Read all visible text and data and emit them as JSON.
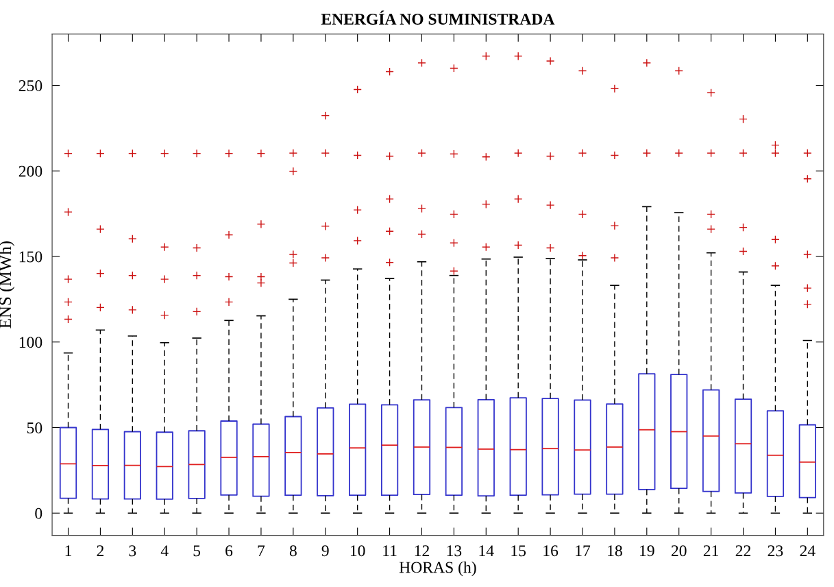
{
  "chart_data": {
    "type": "box",
    "title": "ENERGÍA NO SUMINISTRADA",
    "xlabel": "HORAS (h)",
    "ylabel": "ENS (MWh)",
    "categories": [
      "1",
      "2",
      "3",
      "4",
      "5",
      "6",
      "7",
      "8",
      "9",
      "10",
      "11",
      "12",
      "13",
      "14",
      "15",
      "16",
      "17",
      "18",
      "19",
      "20",
      "21",
      "22",
      "23",
      "24"
    ],
    "ylim": [
      -13,
      280
    ],
    "yticks": [
      0,
      50,
      100,
      150,
      200,
      250
    ],
    "grid": false,
    "marker": "cross",
    "series": [
      {
        "color": "#3333cc",
        "boxes": [
          {
            "low": 0,
            "q1": 8.7,
            "median": 28.8,
            "q3": 50.0,
            "high": 93.6,
            "outliers": [
              113.3,
              123.4,
              136.7,
              176,
              210.2
            ]
          },
          {
            "low": 0,
            "q1": 8.3,
            "median": 27.8,
            "q3": 48.9,
            "high": 107,
            "outliers": [
              120.2,
              140.1,
              166,
              210.2
            ]
          },
          {
            "low": 0,
            "q1": 8.3,
            "median": 27.9,
            "q3": 47.6,
            "high": 103.5,
            "outliers": [
              118.8,
              138.9,
              160.3,
              210.2
            ]
          },
          {
            "low": 0,
            "q1": 8.2,
            "median": 27.2,
            "q3": 47.3,
            "high": 99.6,
            "outliers": [
              115.7,
              136.7,
              155.5,
              210.2
            ]
          },
          {
            "low": 0,
            "q1": 8.6,
            "median": 28.4,
            "q3": 48.1,
            "high": 102.3,
            "outliers": [
              117.8,
              138.9,
              155.0,
              210.2
            ]
          },
          {
            "low": 0,
            "q1": 10.6,
            "median": 32.6,
            "q3": 53.8,
            "high": 112.6,
            "outliers": [
              123.4,
              138.2,
              162.6,
              210.2
            ]
          },
          {
            "low": 0,
            "q1": 9.9,
            "median": 33.0,
            "q3": 52.0,
            "high": 115.3,
            "outliers": [
              134.5,
              138.2,
              168.9,
              210.2
            ]
          },
          {
            "low": 0,
            "q1": 10.5,
            "median": 35.4,
            "q3": 56.4,
            "high": 125,
            "outliers": [
              146.2,
              151.2,
              199.8,
              210.4
            ]
          },
          {
            "low": 0,
            "q1": 10.2,
            "median": 34.6,
            "q3": 61.5,
            "high": 136.2,
            "outliers": [
              149.2,
              167.7,
              210.4,
              232.3
            ]
          },
          {
            "low": 0,
            "q1": 10.5,
            "median": 38.1,
            "q3": 63.7,
            "high": 142.7,
            "outliers": [
              159.2,
              177.2,
              209.1,
              247.6
            ]
          },
          {
            "low": 0,
            "q1": 10.5,
            "median": 39.7,
            "q3": 63.3,
            "high": 137.1,
            "outliers": [
              146.5,
              164.7,
              183.6,
              208.6,
              258
            ]
          },
          {
            "low": 0,
            "q1": 10.9,
            "median": 38.6,
            "q3": 66.2,
            "high": 146.9,
            "outliers": [
              163,
              178,
              210.4,
              263.1
            ]
          },
          {
            "low": 0,
            "q1": 10.5,
            "median": 38.4,
            "q3": 61.7,
            "high": 138.9,
            "outliers": [
              141.5,
              157.9,
              174.7,
              209.9,
              260
            ]
          },
          {
            "low": 0,
            "q1": 10.1,
            "median": 37.4,
            "q3": 66.3,
            "high": 148.5,
            "outliers": [
              155.5,
              180.5,
              208.2,
              267.1
            ]
          },
          {
            "low": 0,
            "q1": 10.5,
            "median": 37.1,
            "q3": 67.4,
            "high": 149.6,
            "outliers": [
              156.6,
              183.6,
              210.4,
              267.1
            ]
          },
          {
            "low": 0,
            "q1": 10.7,
            "median": 37.7,
            "q3": 67.0,
            "high": 148.8,
            "outliers": [
              155.0,
              180,
              208.6,
              264.2
            ]
          },
          {
            "low": 0,
            "q1": 11.1,
            "median": 36.9,
            "q3": 66.1,
            "high": 148,
            "outliers": [
              150.5,
              174.7,
              210.4,
              258.5
            ]
          },
          {
            "low": 0,
            "q1": 11.1,
            "median": 38.6,
            "q3": 63.8,
            "high": 133.1,
            "outliers": [
              149.2,
              168,
              209.1,
              248.1
            ]
          },
          {
            "low": 0,
            "q1": 13.8,
            "median": 48.7,
            "q3": 81.4,
            "high": 179.1,
            "outliers": [
              210.4,
              263.1
            ]
          },
          {
            "low": 0,
            "q1": 14.5,
            "median": 47.6,
            "q3": 81.0,
            "high": 175.6,
            "outliers": [
              210.4,
              258.5
            ]
          },
          {
            "low": 0,
            "q1": 12.7,
            "median": 45.0,
            "q3": 72.0,
            "high": 152.1,
            "outliers": [
              166,
              174.7,
              210.4,
              245.7
            ]
          },
          {
            "low": 0,
            "q1": 11.8,
            "median": 40.5,
            "q3": 66.6,
            "high": 140.9,
            "outliers": [
              153,
              167,
              210.4,
              230.3
            ]
          },
          {
            "low": 0,
            "q1": 9.8,
            "median": 33.8,
            "q3": 59.8,
            "high": 133.1,
            "outliers": [
              144.5,
              159.9,
              210.4,
              215.1
            ]
          },
          {
            "low": 0,
            "q1": 9.1,
            "median": 29.8,
            "q3": 51.6,
            "high": 100.9,
            "outliers": [
              122.1,
              131.5,
              151.2,
              195.4,
              210.4
            ]
          }
        ]
      }
    ]
  }
}
